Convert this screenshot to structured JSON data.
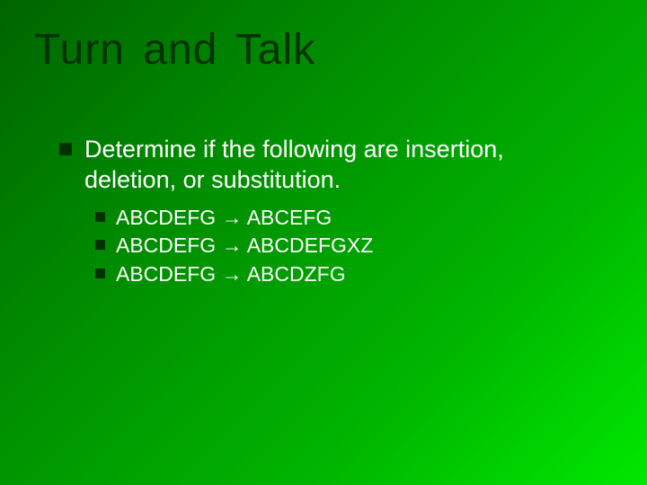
{
  "slide": {
    "title": "Turn and Talk",
    "background_gradient": [
      "#006400",
      "#008800",
      "#00b400",
      "#00e800"
    ],
    "title_color": "#003200",
    "title_fontsize": 48,
    "title_font": "Impact",
    "text_color": "#ffffff",
    "bullet_color": "#003200",
    "level1_fontsize": 27,
    "level2_fontsize": 23,
    "prompt": "Determine if the following are insertion, deletion, or substitution.",
    "items": [
      {
        "from": "ABCDEFG",
        "arrow": "→",
        "to": "ABCEFG"
      },
      {
        "from": "ABCDEFG",
        "arrow": "→",
        "to": "ABCDEFGXZ"
      },
      {
        "from": "ABCDEFG",
        "arrow": "→",
        "to": "ABCDZFG"
      }
    ]
  }
}
